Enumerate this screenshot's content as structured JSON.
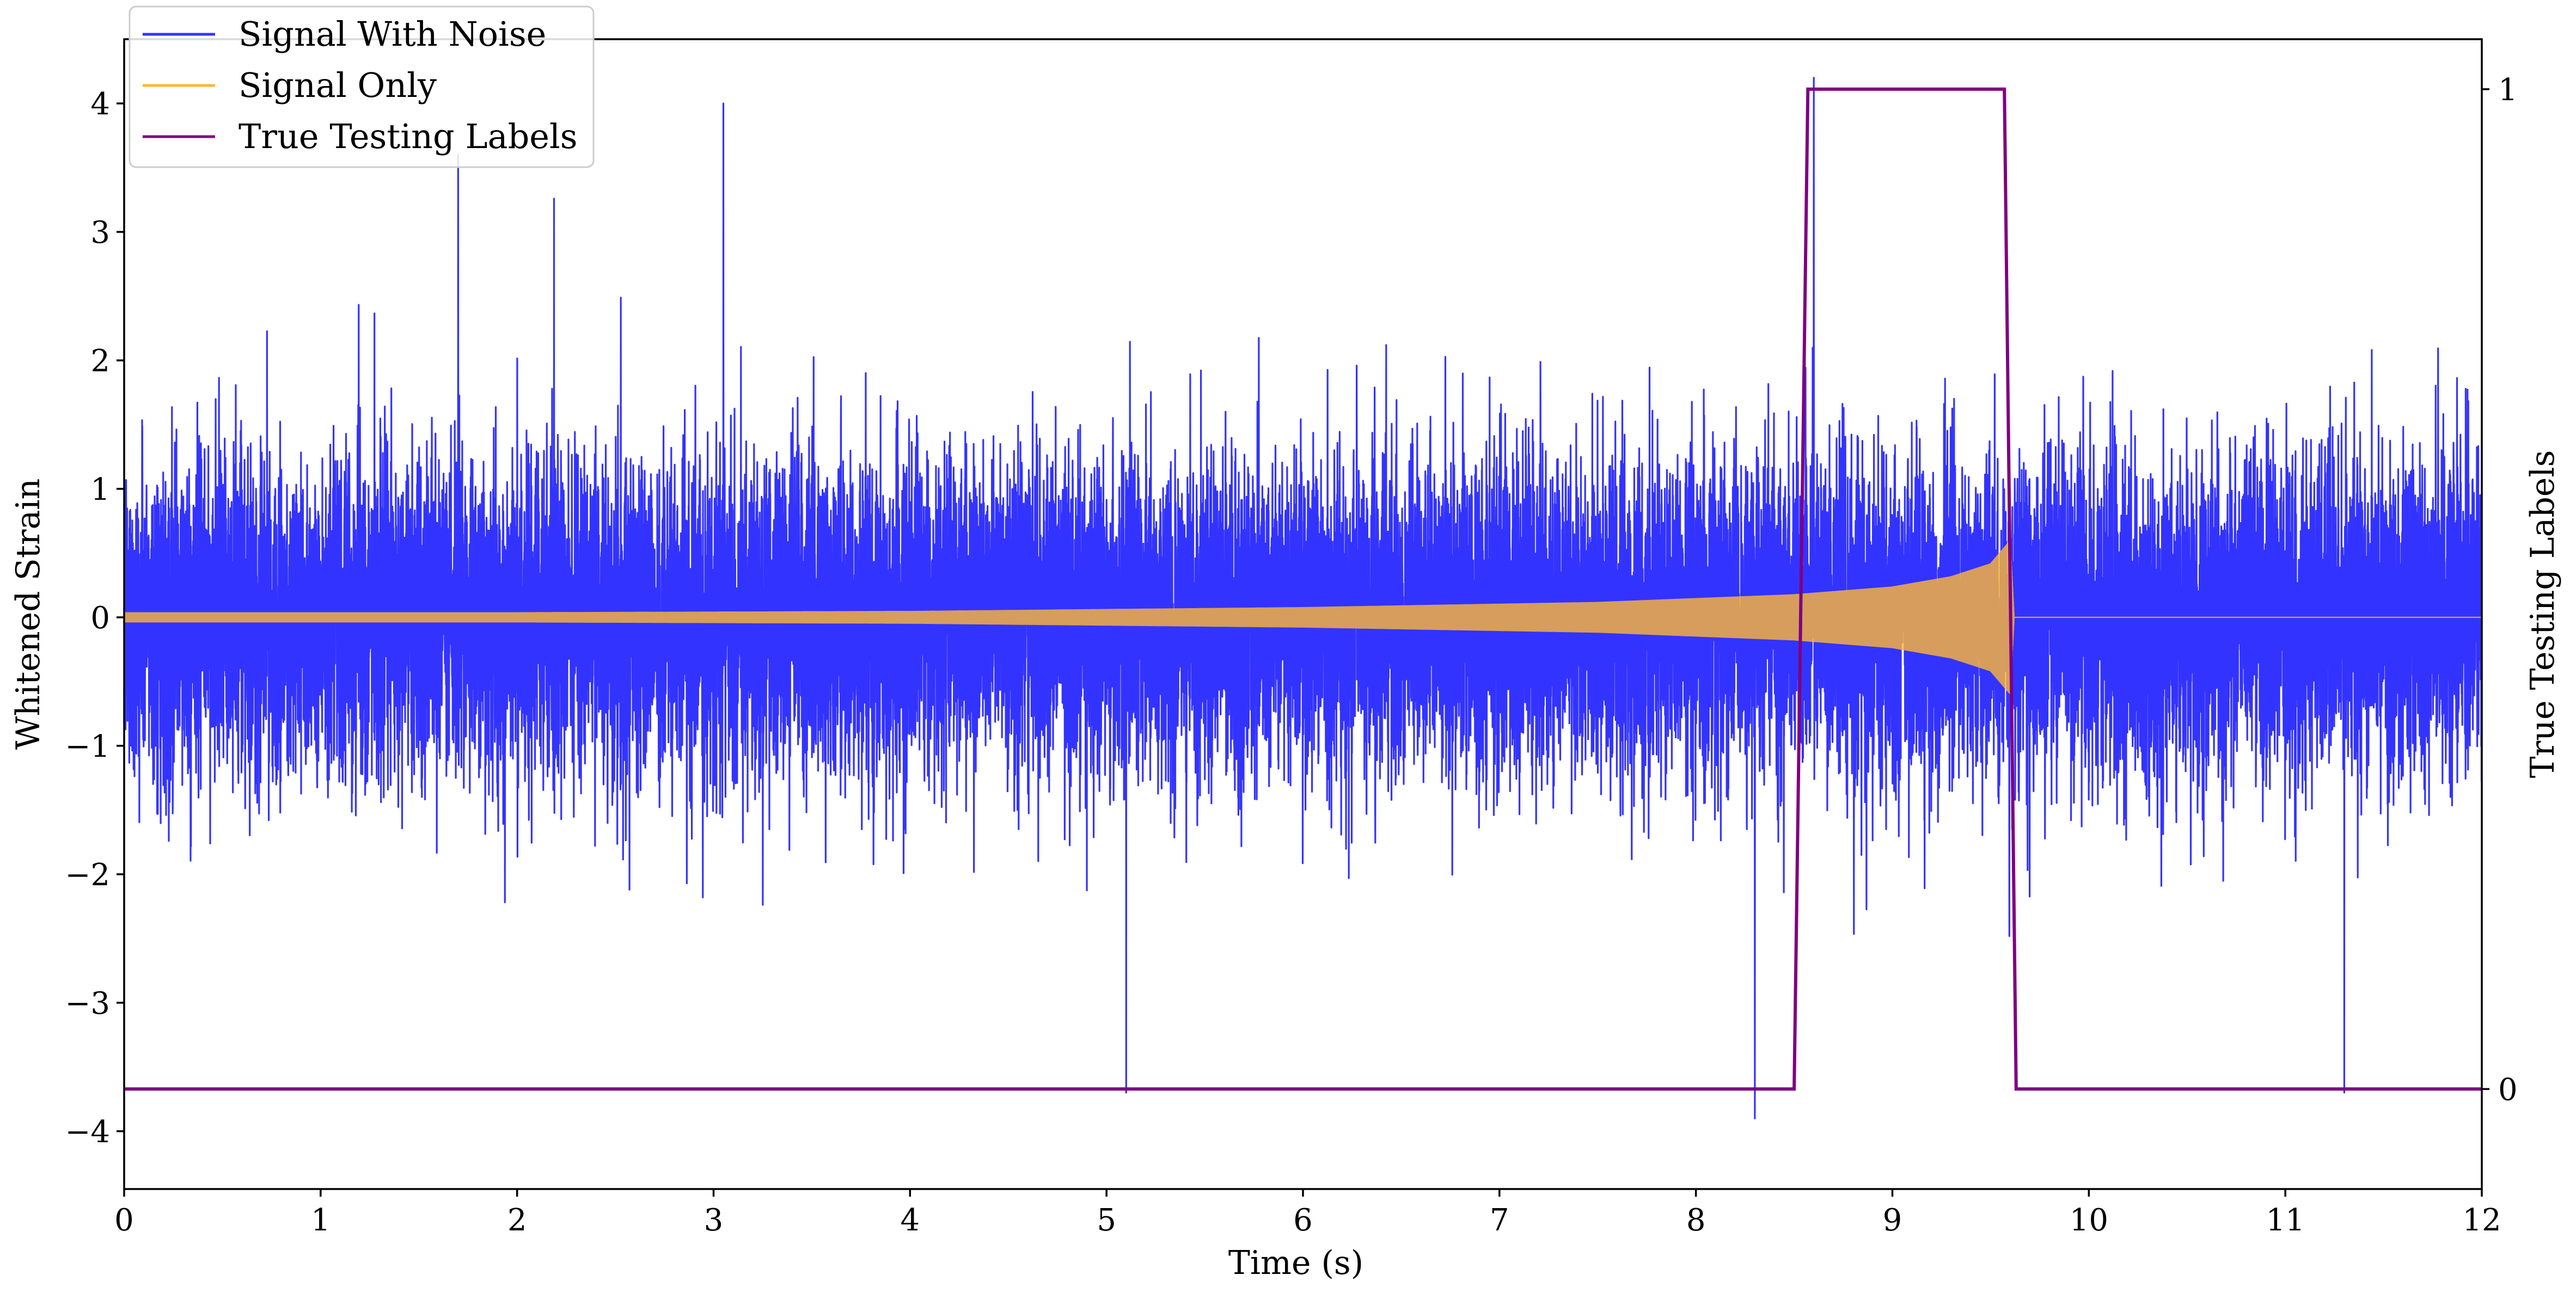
{
  "chart_data": {
    "type": "line",
    "title": "",
    "xlabel": "Time (s)",
    "ylabel": "Whitened Strain",
    "y2label": "True Testing Labels",
    "xlim": [
      0,
      12
    ],
    "ylim": [
      -4.45,
      4.5
    ],
    "y2lim": [
      -0.1,
      1.05
    ],
    "x_ticks": [
      "0",
      "1",
      "2",
      "3",
      "4",
      "5",
      "6",
      "7",
      "8",
      "9",
      "10",
      "11",
      "12"
    ],
    "y_ticks": [
      "4",
      "3",
      "2",
      "1",
      "0",
      "−1",
      "−2",
      "−3",
      "−4"
    ],
    "y2_ticks": [
      "1",
      "0"
    ],
    "grid": false,
    "legend_position": "top-left",
    "series": [
      {
        "name": "Signal With Noise",
        "color": "#3333ff",
        "axis": "left",
        "description_values": {
          "typical_band": [
            -1.3,
            1.3
          ],
          "peak_max": 4.2,
          "peak_min": -3.9,
          "extreme_peaks": [
            {
              "x": 1.7,
              "y": 3.6
            },
            {
              "x": 3.05,
              "y": 4.0
            },
            {
              "x": 8.3,
              "y": -3.9
            },
            {
              "x": 8.6,
              "y": 4.2
            },
            {
              "x": 5.1,
              "y": -3.7
            },
            {
              "x": 11.3,
              "y": -3.7
            }
          ]
        }
      },
      {
        "name": "Signal Only",
        "color": "#ffb833",
        "axis": "left",
        "envelope": [
          {
            "x": 0.0,
            "amp": 0.04
          },
          {
            "x": 2.0,
            "amp": 0.04
          },
          {
            "x": 4.0,
            "amp": 0.05
          },
          {
            "x": 6.0,
            "amp": 0.08
          },
          {
            "x": 7.5,
            "amp": 0.12
          },
          {
            "x": 8.5,
            "amp": 0.18
          },
          {
            "x": 9.0,
            "amp": 0.24
          },
          {
            "x": 9.3,
            "amp": 0.32
          },
          {
            "x": 9.5,
            "amp": 0.42
          },
          {
            "x": 9.6,
            "amp": 0.6
          },
          {
            "x": 9.62,
            "amp": 0.0
          },
          {
            "x": 12.0,
            "amp": 0.0
          }
        ]
      },
      {
        "name": "True Testing Labels",
        "color": "#800080",
        "axis": "right",
        "x": [
          0.0,
          8.5,
          8.57,
          9.57,
          9.63,
          12.0
        ],
        "values": [
          0,
          0,
          1,
          1,
          0,
          0
        ]
      }
    ]
  }
}
